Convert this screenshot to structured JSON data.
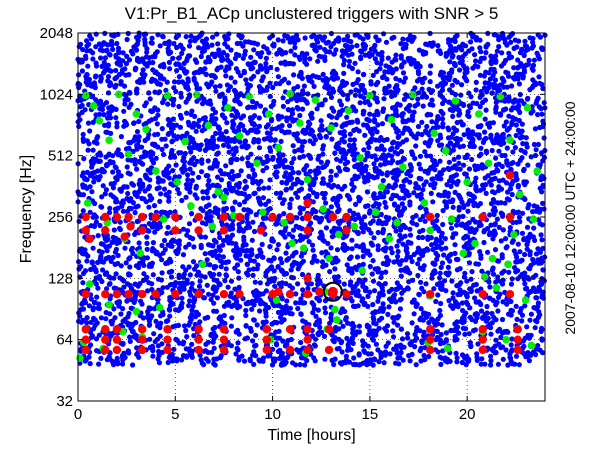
{
  "title": "V1:Pr_B1_ACp unclustered triggers with SNR > 5",
  "side_label": "2007-08-10 12:00:00 UTC + 24:00:00",
  "chart_data": {
    "type": "scatter",
    "title": "V1:Pr_B1_ACp unclustered triggers with SNR > 5",
    "xlabel": "Time [hours]",
    "ylabel": "Frequency [Hz]",
    "xlim": [
      0,
      24
    ],
    "ylim": [
      32,
      2048
    ],
    "yscale": "log2",
    "xticks": [
      0,
      5,
      10,
      15,
      20
    ],
    "yticks": [
      32,
      64,
      128,
      256,
      512,
      1024,
      2048
    ],
    "grid": true,
    "colors": {
      "blue": "#0000ff",
      "green": "#00ee00",
      "red": "#ff0000",
      "marker": "#000000"
    },
    "series": [
      {
        "color": "blue",
        "description_points": "dense background triggers from ~48 Hz to 2048 Hz over 0-24 h"
      },
      {
        "color": "green",
        "points": [
          [
            0.4,
            1010
          ],
          [
            0.8,
            900
          ],
          [
            1.1,
            760
          ],
          [
            1.6,
            610
          ],
          [
            2.1,
            1024
          ],
          [
            2.6,
            520
          ],
          [
            3.0,
            820
          ],
          [
            3.5,
            690
          ],
          [
            4.0,
            430
          ],
          [
            4.6,
            1010
          ],
          [
            5.1,
            380
          ],
          [
            5.5,
            600
          ],
          [
            6.1,
            1020
          ],
          [
            6.7,
            720
          ],
          [
            7.2,
            340
          ],
          [
            7.7,
            880
          ],
          [
            8.3,
            640
          ],
          [
            8.8,
            1000
          ],
          [
            9.2,
            470
          ],
          [
            9.8,
            820
          ],
          [
            10.3,
            560
          ],
          [
            10.9,
            1030
          ],
          [
            11.4,
            740
          ],
          [
            11.8,
            390
          ],
          [
            12.2,
            960
          ],
          [
            12.6,
            280
          ],
          [
            13.0,
            700
          ],
          [
            13.4,
            210
          ],
          [
            13.9,
            850
          ],
          [
            14.5,
            500
          ],
          [
            15.0,
            1010
          ],
          [
            15.6,
            360
          ],
          [
            16.1,
            770
          ],
          [
            16.7,
            450
          ],
          [
            17.2,
            1020
          ],
          [
            17.8,
            300
          ],
          [
            18.3,
            660
          ],
          [
            18.9,
            540
          ],
          [
            19.4,
            950
          ],
          [
            20.0,
            380
          ],
          [
            20.6,
            820
          ],
          [
            21.1,
            470
          ],
          [
            21.7,
            1000
          ],
          [
            22.2,
            610
          ],
          [
            22.7,
            330
          ],
          [
            23.1,
            880
          ],
          [
            23.6,
            430
          ],
          [
            0.5,
            300
          ],
          [
            1.5,
            240
          ],
          [
            2.4,
            200
          ],
          [
            3.2,
            170
          ],
          [
            4.4,
            250
          ],
          [
            5.8,
            290
          ],
          [
            6.9,
            230
          ],
          [
            8.0,
            260
          ],
          [
            9.5,
            270
          ],
          [
            10.6,
            240
          ],
          [
            11.6,
            180
          ],
          [
            12.9,
            160
          ],
          [
            14.2,
            230
          ],
          [
            15.3,
            270
          ],
          [
            16.4,
            240
          ],
          [
            18.1,
            220
          ],
          [
            19.2,
            250
          ],
          [
            20.4,
            190
          ],
          [
            21.3,
            160
          ],
          [
            22.4,
            210
          ],
          [
            23.4,
            250
          ],
          [
            0.6,
            120
          ],
          [
            1.6,
            95
          ],
          [
            3.0,
            88
          ],
          [
            10.2,
            100
          ],
          [
            12.7,
            110
          ],
          [
            13.2,
            90
          ],
          [
            14.6,
            140
          ],
          [
            18.1,
            105
          ],
          [
            20.9,
            130
          ],
          [
            21.5,
            115
          ],
          [
            22.1,
            150
          ],
          [
            23.0,
            100
          ],
          [
            0.3,
            62
          ],
          [
            1.3,
            58
          ],
          [
            2.3,
            70
          ],
          [
            3.3,
            66
          ],
          [
            9.9,
            64
          ],
          [
            11.7,
            55
          ],
          [
            12.8,
            72
          ],
          [
            13.3,
            80
          ],
          [
            18.0,
            62
          ],
          [
            19.0,
            58
          ],
          [
            20.8,
            70
          ],
          [
            22.0,
            64
          ],
          [
            23.3,
            60
          ],
          [
            0.1,
            52
          ],
          [
            4.2,
            92
          ],
          [
            6.4,
            150
          ],
          [
            7.5,
            320
          ],
          [
            11.0,
            190
          ],
          [
            16.0,
            200
          ],
          [
            19.8,
            170
          ]
        ]
      },
      {
        "color": "red",
        "points": [
          [
            0.4,
            256
          ],
          [
            1.4,
            256
          ],
          [
            2.0,
            256
          ],
          [
            2.6,
            256
          ],
          [
            3.3,
            256
          ],
          [
            4.0,
            256
          ],
          [
            5.0,
            256
          ],
          [
            6.2,
            256
          ],
          [
            7.5,
            256
          ],
          [
            8.3,
            256
          ],
          [
            10.0,
            256
          ],
          [
            10.9,
            256
          ],
          [
            11.8,
            256
          ],
          [
            13.1,
            256
          ],
          [
            13.8,
            256
          ],
          [
            18.1,
            256
          ],
          [
            20.8,
            256
          ],
          [
            22.2,
            256
          ],
          [
            0.4,
            220
          ],
          [
            1.4,
            220
          ],
          [
            2.7,
            230
          ],
          [
            3.3,
            220
          ],
          [
            5.0,
            220
          ],
          [
            6.2,
            220
          ],
          [
            7.5,
            220
          ],
          [
            9.4,
            220
          ],
          [
            11.8,
            220
          ],
          [
            13.8,
            220
          ],
          [
            0.6,
            200
          ],
          [
            2.4,
            205
          ],
          [
            11.8,
            300
          ],
          [
            22.2,
            410
          ],
          [
            10.3,
            110
          ],
          [
            11.8,
            128
          ],
          [
            12.4,
            110
          ],
          [
            0.4,
            107
          ],
          [
            1.4,
            107
          ],
          [
            2.0,
            107
          ],
          [
            2.6,
            107
          ],
          [
            3.3,
            107
          ],
          [
            4.0,
            107
          ],
          [
            5.0,
            107
          ],
          [
            6.2,
            107
          ],
          [
            7.5,
            107
          ],
          [
            8.3,
            107
          ],
          [
            10.0,
            107
          ],
          [
            10.9,
            107
          ],
          [
            11.8,
            107
          ],
          [
            13.1,
            107
          ],
          [
            13.8,
            107
          ],
          [
            18.1,
            107
          ],
          [
            20.8,
            107
          ],
          [
            22.2,
            107
          ],
          [
            0.4,
            72
          ],
          [
            1.4,
            72
          ],
          [
            2.0,
            72
          ],
          [
            3.3,
            72
          ],
          [
            4.6,
            72
          ],
          [
            6.2,
            72
          ],
          [
            7.5,
            72
          ],
          [
            9.7,
            72
          ],
          [
            10.9,
            72
          ],
          [
            11.8,
            72
          ],
          [
            12.9,
            72
          ],
          [
            18.1,
            72
          ],
          [
            20.8,
            72
          ],
          [
            22.6,
            72
          ],
          [
            0.4,
            64
          ],
          [
            1.4,
            64
          ],
          [
            2.0,
            64
          ],
          [
            3.3,
            64
          ],
          [
            4.6,
            64
          ],
          [
            6.2,
            64
          ],
          [
            7.5,
            64
          ],
          [
            9.7,
            64
          ],
          [
            11.8,
            64
          ],
          [
            18.1,
            64
          ],
          [
            20.8,
            64
          ],
          [
            22.6,
            64
          ],
          [
            0.4,
            57
          ],
          [
            1.4,
            57
          ],
          [
            2.0,
            57
          ],
          [
            3.3,
            57
          ],
          [
            4.6,
            57
          ],
          [
            6.2,
            57
          ],
          [
            7.5,
            57
          ],
          [
            9.7,
            57
          ],
          [
            10.9,
            57
          ],
          [
            11.8,
            57
          ],
          [
            12.9,
            57
          ],
          [
            18.1,
            57
          ],
          [
            20.8,
            57
          ],
          [
            22.6,
            57
          ]
        ]
      },
      {
        "color": "marker",
        "points": [
          [
            13.1,
            110
          ]
        ]
      }
    ]
  }
}
